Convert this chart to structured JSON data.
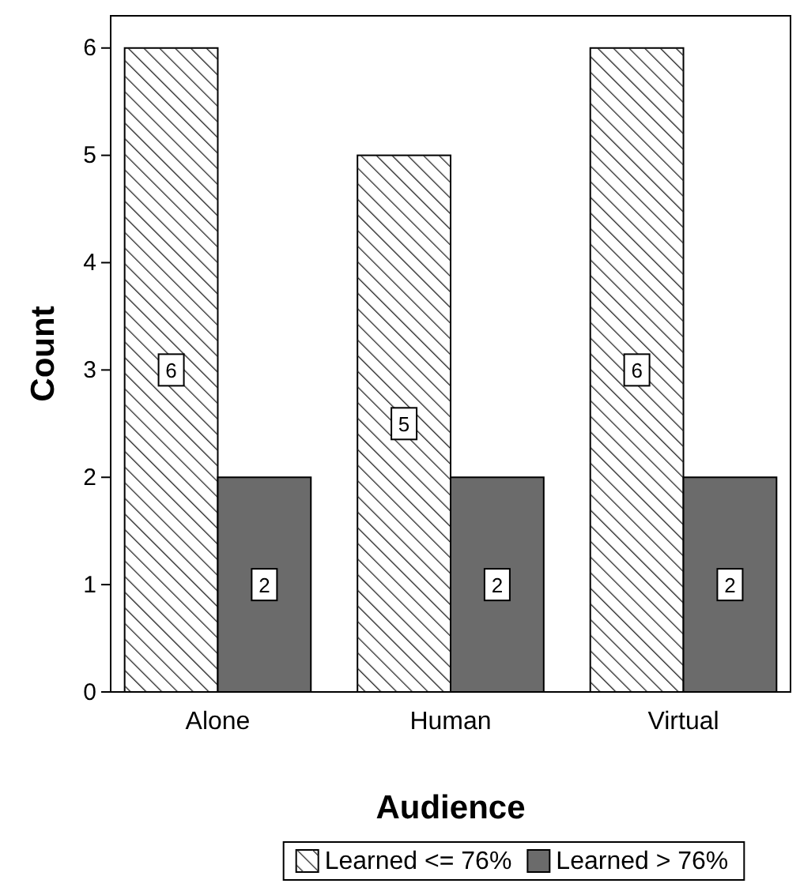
{
  "chart_data": {
    "type": "bar",
    "xlabel": "Audience",
    "ylabel": "Count",
    "categories": [
      "Alone",
      "Human",
      "Virtual"
    ],
    "series": [
      {
        "name": "Learned <= 76%",
        "color": "#ffffff",
        "values": [
          6,
          5,
          6
        ]
      },
      {
        "name": "Learned > 76%",
        "color": "#6b6b6b",
        "values": [
          2,
          2,
          2
        ]
      }
    ],
    "ylim": [
      0,
      6.3
    ],
    "yticks": [
      0,
      1,
      2,
      3,
      4,
      5,
      6
    ],
    "data_labels": true,
    "legend": "bottom",
    "grid": false
  }
}
